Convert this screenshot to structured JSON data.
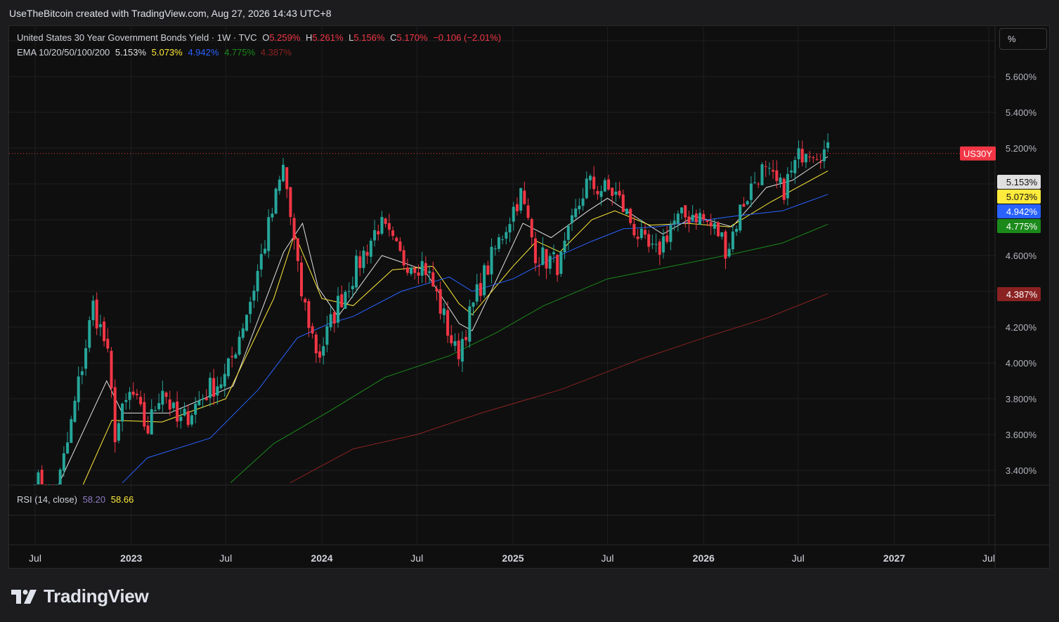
{
  "header": {
    "title": "UseTheBitcoin created with TradingView.com, Aug 27, 2026 14:43 UTC+8"
  },
  "unit_button": "%",
  "legend": {
    "symbol": "United States 30 Year Government Bonds Yield · 1W · TVC",
    "o_label": "O",
    "o_value": "5.259%",
    "h_label": "H",
    "h_value": "5.261%",
    "l_label": "L",
    "l_value": "5.156%",
    "c_label": "C",
    "c_value": "5.170%",
    "change": "−0.106 (−2.01%)",
    "ema_label": "EMA 10/20/50/100/200",
    "ema_values": [
      "5.153%",
      "5.073%",
      "4.942%",
      "4.775%",
      "4.387%"
    ]
  },
  "rsi": {
    "label": "RSI (14, close)",
    "value1": "58.20",
    "value2": "58.66"
  },
  "brand": "TradingView",
  "colors": {
    "up": "#26a69a",
    "down": "#f23645",
    "ema10": "#e0e0e0",
    "ema20": "#ffeb3b",
    "ema50": "#2962ff",
    "ema100": "#1b8a1b",
    "ema200": "#8b2222",
    "rsi1": "#8e7cc3",
    "rsi2": "#ffeb3b"
  },
  "chart_data": {
    "type": "candlestick",
    "symbol_tag": "US30Y",
    "price_axis": {
      "ticks": [
        "5.600%",
        "5.400%",
        "5.200%",
        "4.600%",
        "4.200%",
        "4.000%",
        "3.800%",
        "3.600%",
        "3.400%"
      ],
      "range": [
        3.33,
        5.88
      ]
    },
    "time_axis": {
      "labels": [
        "Jul",
        "2023",
        "Jul",
        "2024",
        "Jul",
        "2025",
        "Jul",
        "2026",
        "Jul",
        "2027",
        "Jul"
      ],
      "bold": [
        false,
        true,
        false,
        true,
        false,
        true,
        false,
        true,
        false,
        true,
        false
      ]
    },
    "last_price": "5.170%",
    "ema_badges": [
      {
        "name": "EMA 10",
        "value": "5.153%",
        "price": 5.153
      },
      {
        "name": "EMA 20",
        "value": "5.073%",
        "price": 5.073
      },
      {
        "name": "EMA 50",
        "value": "4.942%",
        "price": 4.942
      },
      {
        "name": "EMA 100",
        "value": "4.775%",
        "price": 4.775
      },
      {
        "name": "EMA 200",
        "value": "4.387%",
        "price": 4.387
      }
    ],
    "anchors": [
      {
        "date": "2022-06-30",
        "close": 3.38
      },
      {
        "date": "2022-08-01",
        "close": 3.15
      },
      {
        "date": "2022-09-01",
        "close": 3.55
      },
      {
        "date": "2022-10-20",
        "close": 4.32
      },
      {
        "date": "2022-11-15",
        "close": 4.08
      },
      {
        "date": "2022-12-01",
        "close": 3.61
      },
      {
        "date": "2023-01-01",
        "close": 3.84
      },
      {
        "date": "2023-02-01",
        "close": 3.62
      },
      {
        "date": "2023-03-01",
        "close": 3.88
      },
      {
        "date": "2023-04-01",
        "close": 3.65
      },
      {
        "date": "2023-06-01",
        "close": 3.86
      },
      {
        "date": "2023-07-01",
        "close": 3.92
      },
      {
        "date": "2023-08-20",
        "close": 4.38
      },
      {
        "date": "2023-10-20",
        "close": 5.1
      },
      {
        "date": "2023-11-20",
        "close": 4.42
      },
      {
        "date": "2023-12-25",
        "close": 4.03
      },
      {
        "date": "2024-02-01",
        "close": 4.33
      },
      {
        "date": "2024-04-20",
        "close": 4.78
      },
      {
        "date": "2024-06-01",
        "close": 4.58
      },
      {
        "date": "2024-07-15",
        "close": 4.55
      },
      {
        "date": "2024-08-05",
        "close": 4.4
      },
      {
        "date": "2024-09-15",
        "close": 4.04
      },
      {
        "date": "2024-11-01",
        "close": 4.45
      },
      {
        "date": "2025-01-15",
        "close": 4.95
      },
      {
        "date": "2025-02-15",
        "close": 4.6
      },
      {
        "date": "2025-04-01",
        "close": 4.55
      },
      {
        "date": "2025-05-20",
        "close": 5.0
      },
      {
        "date": "2025-07-15",
        "close": 4.95
      },
      {
        "date": "2025-09-10",
        "close": 4.65
      },
      {
        "date": "2025-10-01",
        "close": 4.6
      },
      {
        "date": "2025-11-01",
        "close": 4.78
      },
      {
        "date": "2025-12-15",
        "close": 4.84
      },
      {
        "date": "2026-02-01",
        "close": 4.72
      },
      {
        "date": "2026-02-15",
        "close": 4.63
      },
      {
        "date": "2026-03-15",
        "close": 4.88
      },
      {
        "date": "2026-04-20",
        "close": 5.08
      },
      {
        "date": "2026-06-01",
        "close": 4.96
      },
      {
        "date": "2026-07-15",
        "close": 5.22
      },
      {
        "date": "2026-08-27",
        "close": 5.17
      }
    ],
    "ema_series": [
      {
        "name": "EMA 10",
        "points": [
          [
            "2022-08-15",
            3.3
          ],
          [
            "2022-11-15",
            3.9
          ],
          [
            "2022-12-15",
            3.72
          ],
          [
            "2023-03-15",
            3.72
          ],
          [
            "2023-07-15",
            3.87
          ],
          [
            "2023-10-20",
            4.62
          ],
          [
            "2023-11-25",
            4.78
          ],
          [
            "2023-12-25",
            4.42
          ],
          [
            "2024-02-01",
            4.26
          ],
          [
            "2024-04-25",
            4.6
          ],
          [
            "2024-07-15",
            4.52
          ],
          [
            "2024-09-20",
            4.22
          ],
          [
            "2024-10-15",
            4.18
          ],
          [
            "2024-11-20",
            4.4
          ],
          [
            "2025-01-20",
            4.78
          ],
          [
            "2025-03-15",
            4.7
          ],
          [
            "2025-05-25",
            4.85
          ],
          [
            "2025-07-01",
            4.92
          ],
          [
            "2025-09-01",
            4.8
          ],
          [
            "2025-10-15",
            4.72
          ],
          [
            "2025-12-15",
            4.82
          ],
          [
            "2026-02-25",
            4.76
          ],
          [
            "2026-05-01",
            4.98
          ],
          [
            "2026-06-20",
            5.02
          ],
          [
            "2026-08-27",
            5.153
          ]
        ]
      },
      {
        "name": "EMA 20",
        "points": [
          [
            "2022-10-01",
            3.3
          ],
          [
            "2022-11-25",
            3.68
          ],
          [
            "2023-03-01",
            3.67
          ],
          [
            "2023-07-01",
            3.8
          ],
          [
            "2023-10-01",
            4.36
          ],
          [
            "2023-11-10",
            4.72
          ],
          [
            "2024-01-01",
            4.36
          ],
          [
            "2024-03-01",
            4.32
          ],
          [
            "2024-05-15",
            4.52
          ],
          [
            "2024-08-01",
            4.54
          ],
          [
            "2024-09-20",
            4.33
          ],
          [
            "2024-10-15",
            4.27
          ],
          [
            "2025-01-01",
            4.54
          ],
          [
            "2025-02-15",
            4.68
          ],
          [
            "2025-04-01",
            4.62
          ],
          [
            "2025-06-01",
            4.8
          ],
          [
            "2025-07-15",
            4.85
          ],
          [
            "2025-09-20",
            4.77
          ],
          [
            "2025-12-01",
            4.78
          ],
          [
            "2026-02-20",
            4.76
          ],
          [
            "2026-05-10",
            4.9
          ],
          [
            "2026-08-27",
            5.073
          ]
        ]
      },
      {
        "name": "EMA 50",
        "points": [
          [
            "2022-12-15",
            3.33
          ],
          [
            "2023-02-01",
            3.47
          ],
          [
            "2023-06-01",
            3.58
          ],
          [
            "2023-09-01",
            3.85
          ],
          [
            "2023-11-15",
            4.14
          ],
          [
            "2024-01-15",
            4.22
          ],
          [
            "2024-03-01",
            4.26
          ],
          [
            "2024-06-01",
            4.4
          ],
          [
            "2024-09-01",
            4.48
          ],
          [
            "2024-10-15",
            4.4
          ],
          [
            "2025-01-01",
            4.47
          ],
          [
            "2025-03-15",
            4.58
          ],
          [
            "2025-06-01",
            4.68
          ],
          [
            "2025-08-01",
            4.75
          ],
          [
            "2025-10-01",
            4.76
          ],
          [
            "2025-12-15",
            4.79
          ],
          [
            "2026-03-01",
            4.82
          ],
          [
            "2026-06-01",
            4.85
          ],
          [
            "2026-08-27",
            4.942
          ]
        ]
      },
      {
        "name": "EMA 100",
        "points": [
          [
            "2023-07-10",
            3.33
          ],
          [
            "2023-10-01",
            3.55
          ],
          [
            "2024-01-15",
            3.73
          ],
          [
            "2024-05-01",
            3.92
          ],
          [
            "2024-09-01",
            4.04
          ],
          [
            "2024-12-01",
            4.17
          ],
          [
            "2025-03-01",
            4.32
          ],
          [
            "2025-07-01",
            4.47
          ],
          [
            "2025-11-01",
            4.54
          ],
          [
            "2026-03-01",
            4.61
          ],
          [
            "2026-06-01",
            4.67
          ],
          [
            "2026-08-27",
            4.775
          ]
        ]
      },
      {
        "name": "EMA 200",
        "points": [
          [
            "2023-11-01",
            3.33
          ],
          [
            "2024-03-01",
            3.52
          ],
          [
            "2024-07-01",
            3.6
          ],
          [
            "2024-11-01",
            3.72
          ],
          [
            "2025-04-01",
            3.85
          ],
          [
            "2025-09-01",
            4.02
          ],
          [
            "2026-01-01",
            4.14
          ],
          [
            "2026-05-01",
            4.25
          ],
          [
            "2026-08-27",
            4.387
          ]
        ]
      }
    ]
  }
}
